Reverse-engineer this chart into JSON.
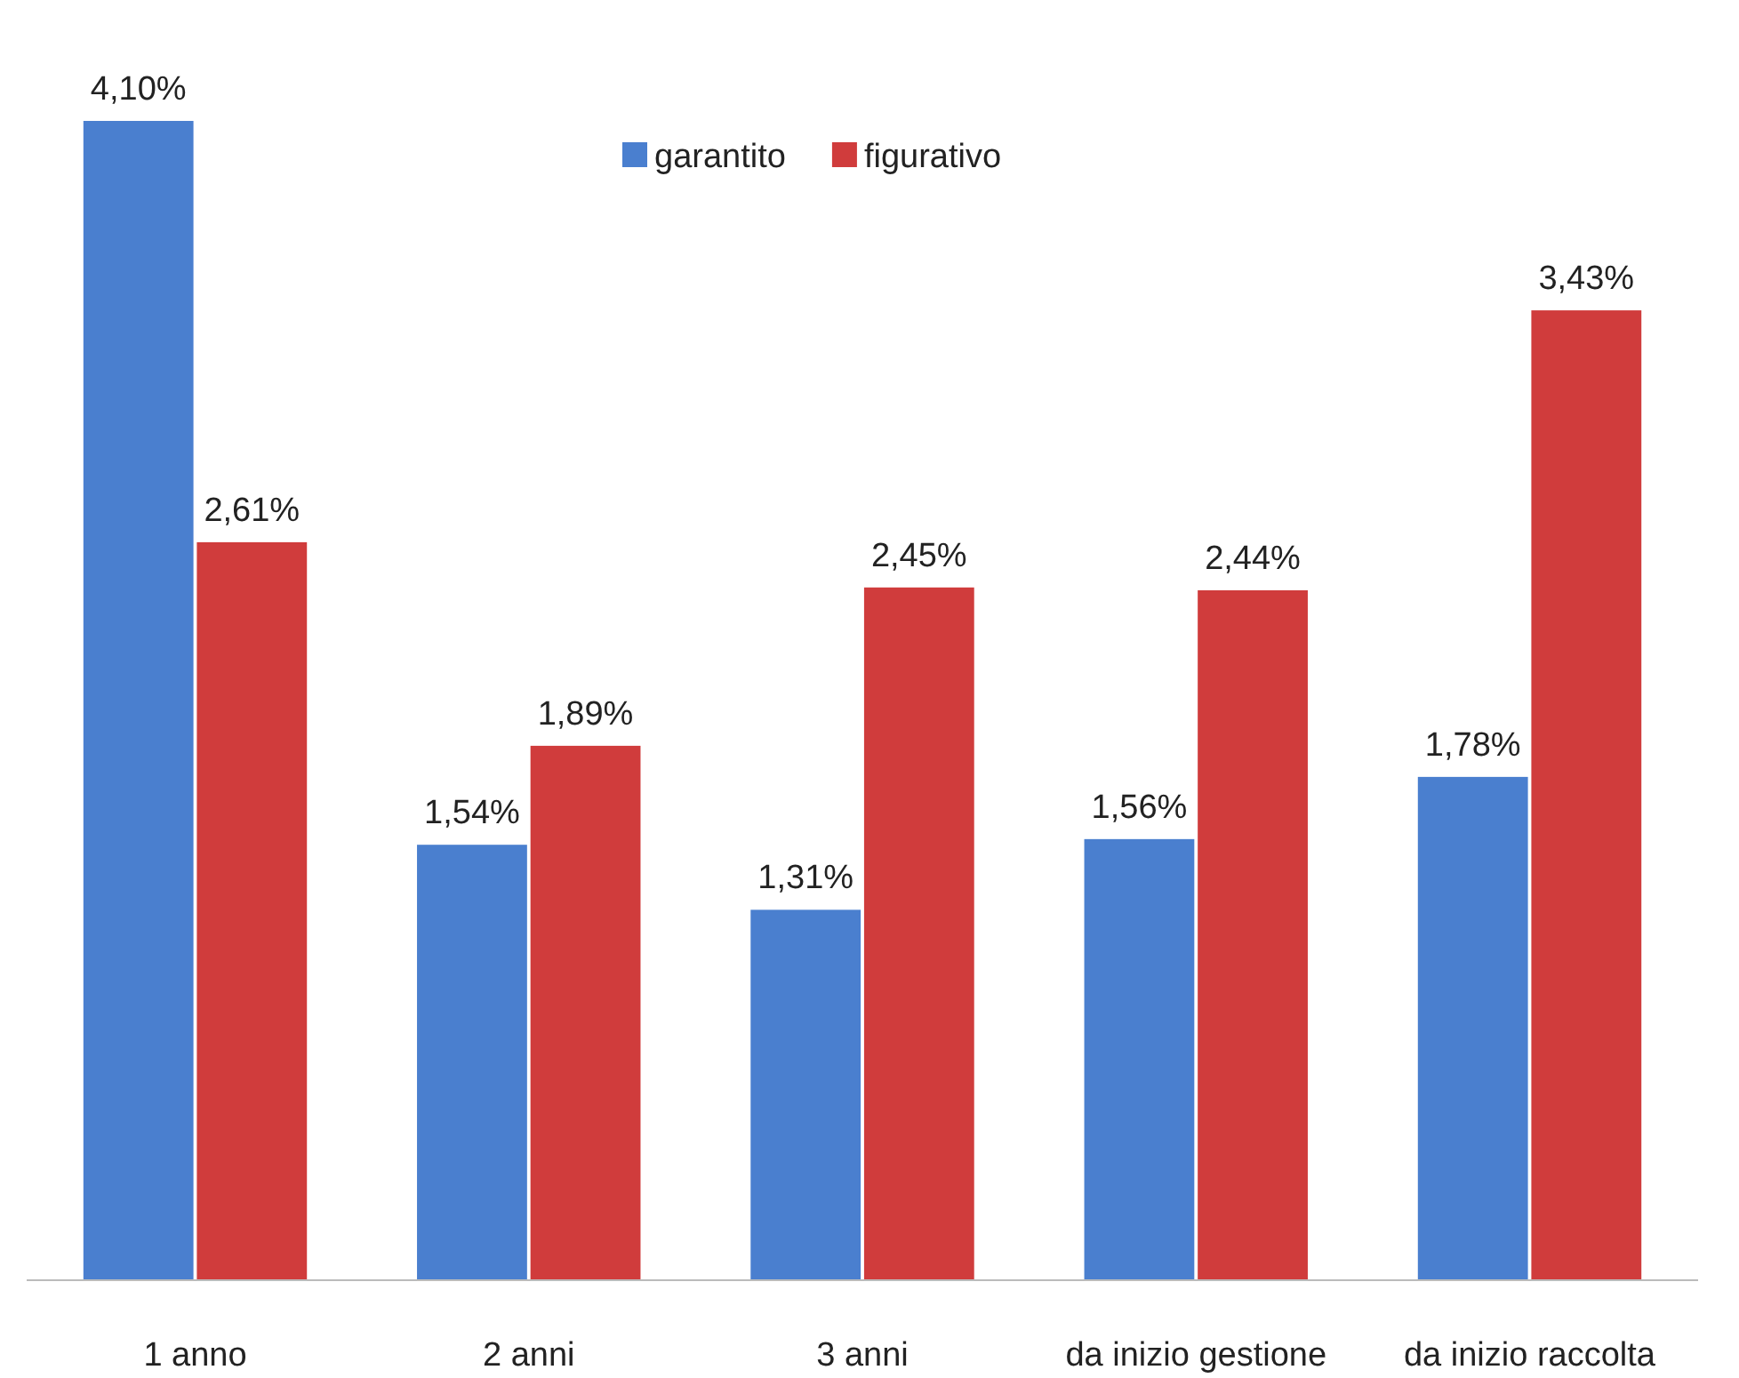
{
  "chart_data": {
    "type": "bar",
    "categories": [
      "1 anno",
      "2 anni",
      "3 anni",
      "da inizio gestione",
      "da inizio raccolta"
    ],
    "series": [
      {
        "name": "garantito",
        "color": "#4a7fcf",
        "values": [
          4.1,
          1.54,
          1.31,
          1.56,
          1.78
        ],
        "value_labels": [
          "4,10%",
          "1,54%",
          "1,31%",
          "1,56%",
          "1,78%"
        ]
      },
      {
        "name": "figurativo",
        "color": "#d03c3c",
        "values": [
          2.61,
          1.89,
          2.45,
          2.44,
          3.43
        ],
        "value_labels": [
          "2,61%",
          "1,89%",
          "2,45%",
          "2,44%",
          "3,43%"
        ]
      }
    ],
    "legend": "top"
  }
}
